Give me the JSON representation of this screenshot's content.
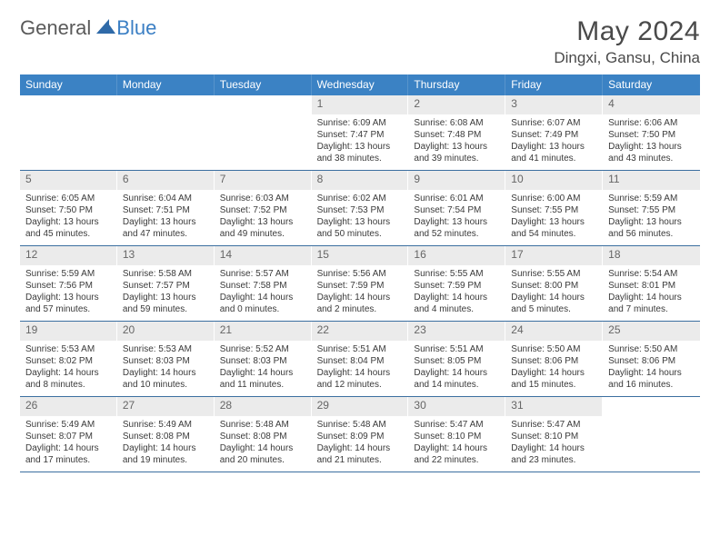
{
  "logo": {
    "part1": "General",
    "part2": "Blue"
  },
  "title": "May 2024",
  "location": "Dingxi, Gansu, China",
  "colors": {
    "header_bg": "#3b82c4",
    "daynum_bg": "#ebebeb",
    "rule": "#3b6fa0",
    "text": "#3a3a3a",
    "title_text": "#4a4a4a"
  },
  "days_of_week": [
    "Sunday",
    "Monday",
    "Tuesday",
    "Wednesday",
    "Thursday",
    "Friday",
    "Saturday"
  ],
  "weeks": [
    [
      {
        "n": "",
        "sr": "",
        "ss": "",
        "dl": ""
      },
      {
        "n": "",
        "sr": "",
        "ss": "",
        "dl": ""
      },
      {
        "n": "",
        "sr": "",
        "ss": "",
        "dl": ""
      },
      {
        "n": "1",
        "sr": "Sunrise: 6:09 AM",
        "ss": "Sunset: 7:47 PM",
        "dl": "Daylight: 13 hours and 38 minutes."
      },
      {
        "n": "2",
        "sr": "Sunrise: 6:08 AM",
        "ss": "Sunset: 7:48 PM",
        "dl": "Daylight: 13 hours and 39 minutes."
      },
      {
        "n": "3",
        "sr": "Sunrise: 6:07 AM",
        "ss": "Sunset: 7:49 PM",
        "dl": "Daylight: 13 hours and 41 minutes."
      },
      {
        "n": "4",
        "sr": "Sunrise: 6:06 AM",
        "ss": "Sunset: 7:50 PM",
        "dl": "Daylight: 13 hours and 43 minutes."
      }
    ],
    [
      {
        "n": "5",
        "sr": "Sunrise: 6:05 AM",
        "ss": "Sunset: 7:50 PM",
        "dl": "Daylight: 13 hours and 45 minutes."
      },
      {
        "n": "6",
        "sr": "Sunrise: 6:04 AM",
        "ss": "Sunset: 7:51 PM",
        "dl": "Daylight: 13 hours and 47 minutes."
      },
      {
        "n": "7",
        "sr": "Sunrise: 6:03 AM",
        "ss": "Sunset: 7:52 PM",
        "dl": "Daylight: 13 hours and 49 minutes."
      },
      {
        "n": "8",
        "sr": "Sunrise: 6:02 AM",
        "ss": "Sunset: 7:53 PM",
        "dl": "Daylight: 13 hours and 50 minutes."
      },
      {
        "n": "9",
        "sr": "Sunrise: 6:01 AM",
        "ss": "Sunset: 7:54 PM",
        "dl": "Daylight: 13 hours and 52 minutes."
      },
      {
        "n": "10",
        "sr": "Sunrise: 6:00 AM",
        "ss": "Sunset: 7:55 PM",
        "dl": "Daylight: 13 hours and 54 minutes."
      },
      {
        "n": "11",
        "sr": "Sunrise: 5:59 AM",
        "ss": "Sunset: 7:55 PM",
        "dl": "Daylight: 13 hours and 56 minutes."
      }
    ],
    [
      {
        "n": "12",
        "sr": "Sunrise: 5:59 AM",
        "ss": "Sunset: 7:56 PM",
        "dl": "Daylight: 13 hours and 57 minutes."
      },
      {
        "n": "13",
        "sr": "Sunrise: 5:58 AM",
        "ss": "Sunset: 7:57 PM",
        "dl": "Daylight: 13 hours and 59 minutes."
      },
      {
        "n": "14",
        "sr": "Sunrise: 5:57 AM",
        "ss": "Sunset: 7:58 PM",
        "dl": "Daylight: 14 hours and 0 minutes."
      },
      {
        "n": "15",
        "sr": "Sunrise: 5:56 AM",
        "ss": "Sunset: 7:59 PM",
        "dl": "Daylight: 14 hours and 2 minutes."
      },
      {
        "n": "16",
        "sr": "Sunrise: 5:55 AM",
        "ss": "Sunset: 7:59 PM",
        "dl": "Daylight: 14 hours and 4 minutes."
      },
      {
        "n": "17",
        "sr": "Sunrise: 5:55 AM",
        "ss": "Sunset: 8:00 PM",
        "dl": "Daylight: 14 hours and 5 minutes."
      },
      {
        "n": "18",
        "sr": "Sunrise: 5:54 AM",
        "ss": "Sunset: 8:01 PM",
        "dl": "Daylight: 14 hours and 7 minutes."
      }
    ],
    [
      {
        "n": "19",
        "sr": "Sunrise: 5:53 AM",
        "ss": "Sunset: 8:02 PM",
        "dl": "Daylight: 14 hours and 8 minutes."
      },
      {
        "n": "20",
        "sr": "Sunrise: 5:53 AM",
        "ss": "Sunset: 8:03 PM",
        "dl": "Daylight: 14 hours and 10 minutes."
      },
      {
        "n": "21",
        "sr": "Sunrise: 5:52 AM",
        "ss": "Sunset: 8:03 PM",
        "dl": "Daylight: 14 hours and 11 minutes."
      },
      {
        "n": "22",
        "sr": "Sunrise: 5:51 AM",
        "ss": "Sunset: 8:04 PM",
        "dl": "Daylight: 14 hours and 12 minutes."
      },
      {
        "n": "23",
        "sr": "Sunrise: 5:51 AM",
        "ss": "Sunset: 8:05 PM",
        "dl": "Daylight: 14 hours and 14 minutes."
      },
      {
        "n": "24",
        "sr": "Sunrise: 5:50 AM",
        "ss": "Sunset: 8:06 PM",
        "dl": "Daylight: 14 hours and 15 minutes."
      },
      {
        "n": "25",
        "sr": "Sunrise: 5:50 AM",
        "ss": "Sunset: 8:06 PM",
        "dl": "Daylight: 14 hours and 16 minutes."
      }
    ],
    [
      {
        "n": "26",
        "sr": "Sunrise: 5:49 AM",
        "ss": "Sunset: 8:07 PM",
        "dl": "Daylight: 14 hours and 17 minutes."
      },
      {
        "n": "27",
        "sr": "Sunrise: 5:49 AM",
        "ss": "Sunset: 8:08 PM",
        "dl": "Daylight: 14 hours and 19 minutes."
      },
      {
        "n": "28",
        "sr": "Sunrise: 5:48 AM",
        "ss": "Sunset: 8:08 PM",
        "dl": "Daylight: 14 hours and 20 minutes."
      },
      {
        "n": "29",
        "sr": "Sunrise: 5:48 AM",
        "ss": "Sunset: 8:09 PM",
        "dl": "Daylight: 14 hours and 21 minutes."
      },
      {
        "n": "30",
        "sr": "Sunrise: 5:47 AM",
        "ss": "Sunset: 8:10 PM",
        "dl": "Daylight: 14 hours and 22 minutes."
      },
      {
        "n": "31",
        "sr": "Sunrise: 5:47 AM",
        "ss": "Sunset: 8:10 PM",
        "dl": "Daylight: 14 hours and 23 minutes."
      },
      {
        "n": "",
        "sr": "",
        "ss": "",
        "dl": ""
      }
    ]
  ]
}
